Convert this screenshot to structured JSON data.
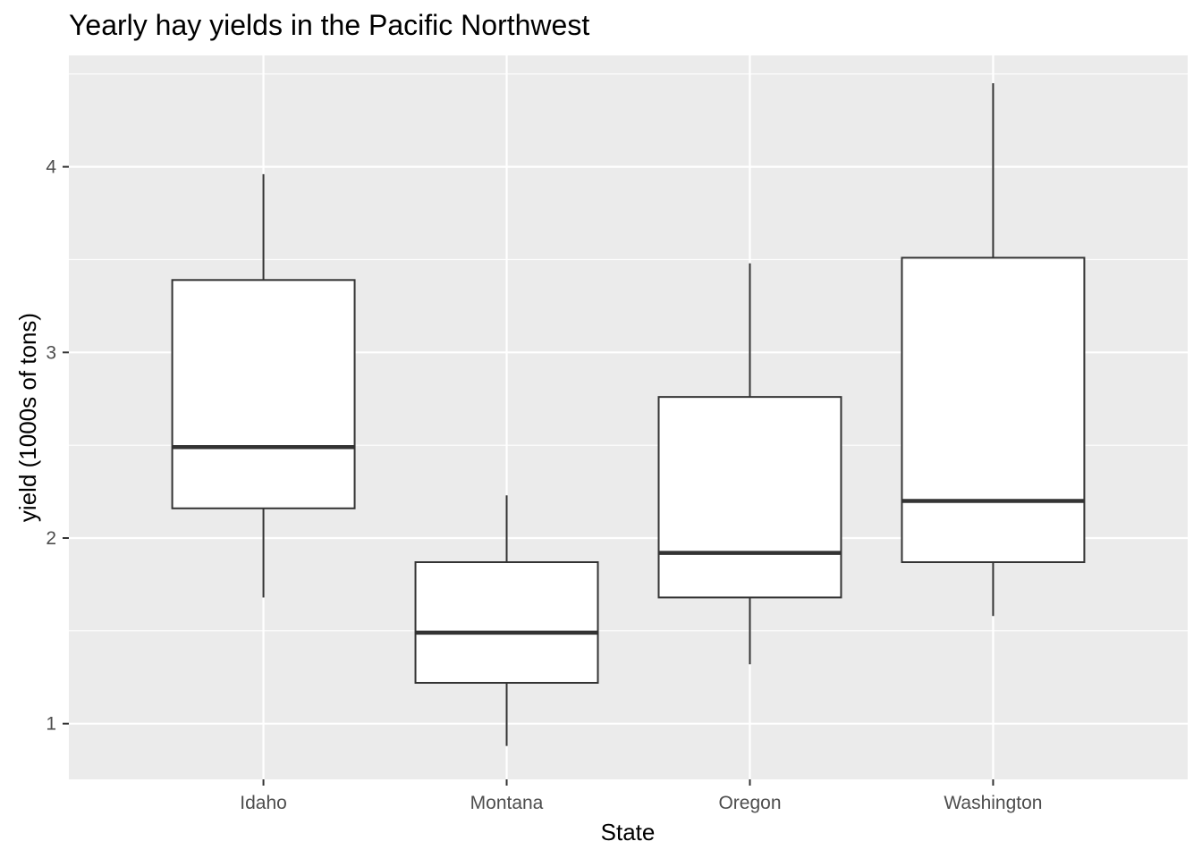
{
  "chart_data": {
    "type": "boxplot",
    "title": "Yearly hay yields in the Pacific Northwest",
    "xlabel": "State",
    "ylabel": "yield (1000s of tons)",
    "categories": [
      "Idaho",
      "Montana",
      "Oregon",
      "Washington"
    ],
    "boxes": [
      {
        "category": "Idaho",
        "whisker_low": 1.68,
        "q1": 2.16,
        "median": 2.49,
        "q3": 3.39,
        "whisker_high": 3.96
      },
      {
        "category": "Montana",
        "whisker_low": 0.88,
        "q1": 1.22,
        "median": 1.49,
        "q3": 1.87,
        "whisker_high": 2.23
      },
      {
        "category": "Oregon",
        "whisker_low": 1.32,
        "q1": 1.68,
        "median": 1.92,
        "q3": 2.76,
        "whisker_high": 3.48
      },
      {
        "category": "Washington",
        "whisker_low": 1.58,
        "q1": 1.87,
        "median": 2.2,
        "q3": 3.51,
        "whisker_high": 4.45
      }
    ],
    "ylim": [
      0.7,
      4.6
    ],
    "yticks": [
      1,
      2,
      3,
      4
    ],
    "grid": true,
    "colors": {
      "panel_background": "#ebebeb",
      "grid": "#ffffff",
      "box_fill": "#ffffff",
      "box_line": "#333333",
      "tick": "#333333"
    }
  }
}
